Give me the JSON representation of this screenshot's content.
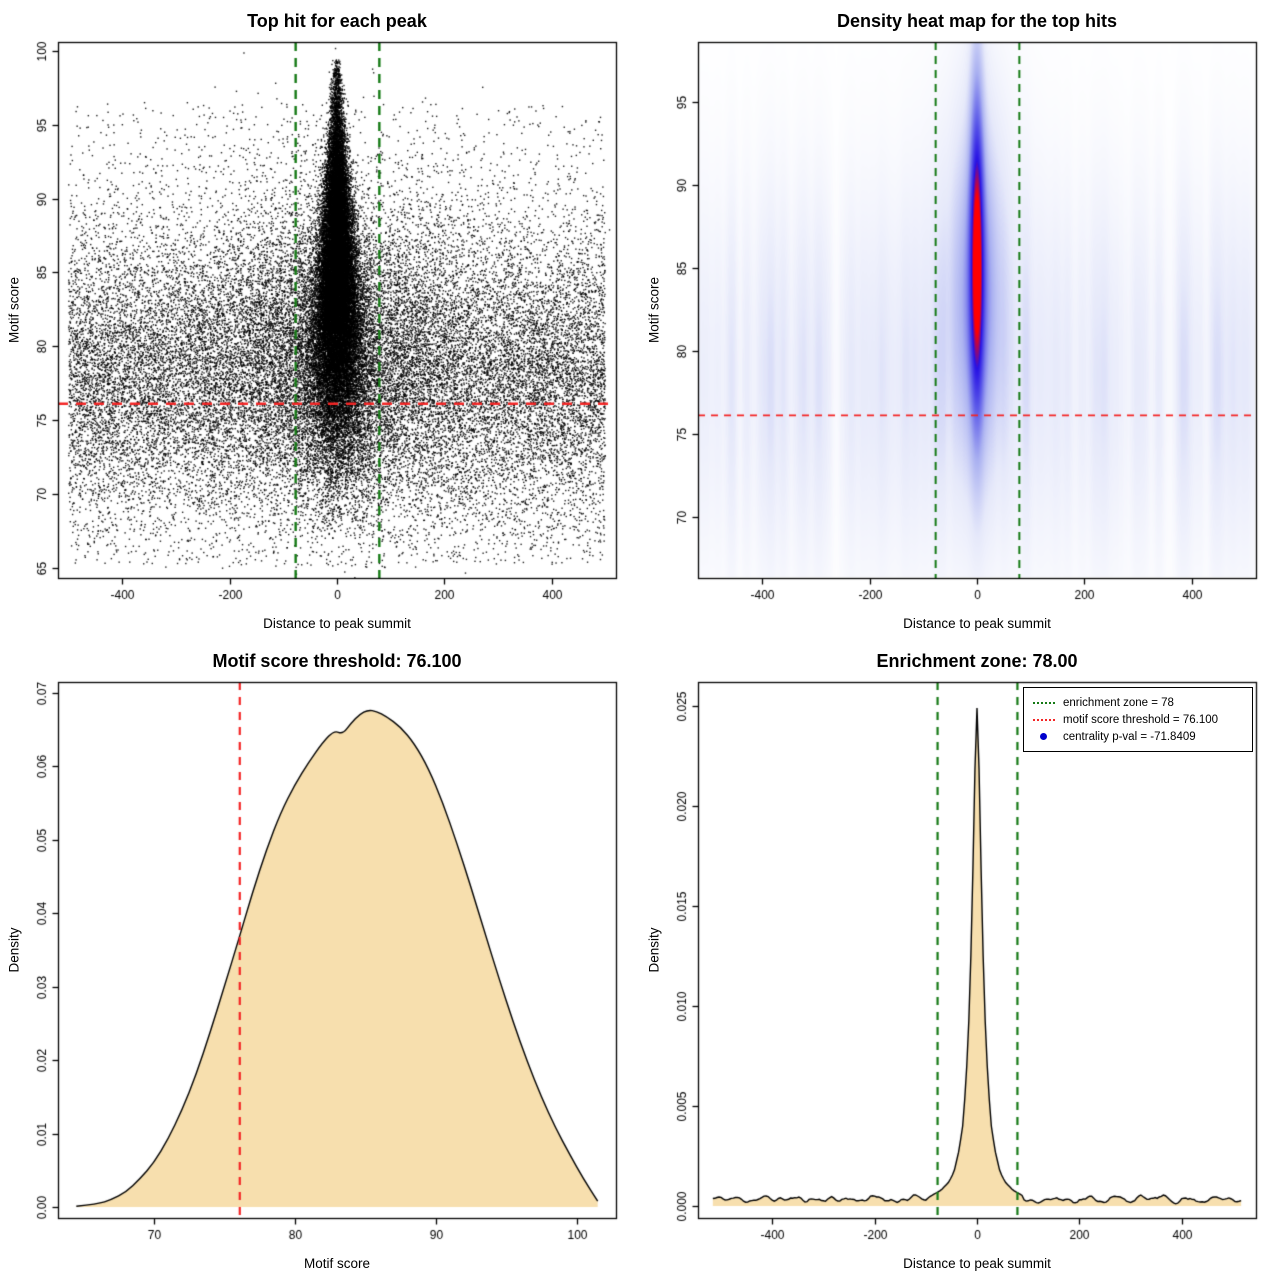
{
  "page": {
    "background": "#ffffff"
  },
  "chart_data": [
    {
      "id": "top-hit-scatter",
      "type": "scatter",
      "title": "Top hit for each peak",
      "xlabel": "Distance to peak summit",
      "ylabel": "Motif score",
      "xlim": [
        -520,
        520
      ],
      "ylim": [
        64.3,
        100.6
      ],
      "xticks": [
        -400,
        -200,
        0,
        200,
        400
      ],
      "yticks": [
        65,
        70,
        75,
        80,
        85,
        90,
        95,
        100
      ],
      "grid": false,
      "point_color": "#000000",
      "threshold_line": {
        "value": 76.1,
        "orientation": "horizontal",
        "color": "#f42525",
        "style": "dashed",
        "lwd": 2.6,
        "dash": [
          10,
          8
        ]
      },
      "zone_lines": {
        "values": [
          -78,
          78
        ],
        "orientation": "vertical",
        "color": "#157a15",
        "style": "dashed",
        "lwd": 2.4,
        "dash": [
          9,
          7
        ]
      },
      "distribution": {
        "seed": 42,
        "background": {
          "n": 22000,
          "x_min": -500,
          "x_max": 500,
          "y_mean": 78.0,
          "y_sd": 5.0,
          "y_min": 65,
          "y_max": 99
        },
        "uniform_outliers": {
          "n": 2600,
          "x_min": -500,
          "x_max": 500,
          "y_min": 65.2,
          "y_max": 96.5
        },
        "halo": {
          "n": 6000,
          "x_sd": 115,
          "y_mean": 80.5,
          "y_sd": 5.5
        },
        "central": {
          "n": 26000,
          "y_mean": 84.5,
          "y_sd": 5.8,
          "y_min": 67.5,
          "y_max": 99.4,
          "x_sd_base": 11,
          "x_sd_slope": 1.05,
          "x_sd_max": 34
        }
      }
    },
    {
      "id": "top-hit-heatmap",
      "type": "heatmap",
      "title": "Density heat map for the top hits",
      "xlabel": "Distance to peak summit",
      "ylabel": "Motif score",
      "xlim": [
        -520,
        520
      ],
      "ylim": [
        66.3,
        98.6
      ],
      "xticks": [
        -400,
        -200,
        0,
        200,
        400
      ],
      "yticks": [
        70,
        75,
        80,
        85,
        90,
        95
      ],
      "grid": false,
      "threshold_line": {
        "value": 76.1,
        "orientation": "horizontal",
        "color": "#f42525",
        "style": "dashed",
        "lwd": 1.6,
        "dash": [
          7,
          6
        ]
      },
      "zone_lines": {
        "values": [
          -78,
          78
        ],
        "orientation": "vertical",
        "color": "#157a15",
        "style": "dashed",
        "lwd": 2,
        "dash": [
          8,
          6
        ]
      },
      "density_model": {
        "noise_seed": 7,
        "norm": 1.78,
        "core": {
          "amp": 1.3,
          "x_sd": 9,
          "y_mean": 86.5,
          "y_sd": 7
        },
        "mid": {
          "amp": 0.55,
          "x_sd": 26,
          "y_mean": 84,
          "y_sd": 6.5
        },
        "halo": {
          "amp": 0.2,
          "x_sd": 55,
          "y_mean": 83,
          "y_sd": 8
        },
        "band": {
          "amp": 0.13,
          "y_mean": 78.5,
          "y_sd": 7
        }
      },
      "colormap": [
        [
          0,
          "#ffffff"
        ],
        [
          0.2,
          "#e6e9fa"
        ],
        [
          0.45,
          "#aab1f1"
        ],
        [
          0.68,
          "#5c5ae9"
        ],
        [
          0.86,
          "#2812e4"
        ],
        [
          1,
          "#ff0000"
        ]
      ]
    },
    {
      "id": "motif-score-density",
      "type": "area",
      "title": "Motif score threshold: 76.100",
      "xlabel": "Motif score",
      "ylabel": "Density",
      "xlim": [
        63.2,
        102.8
      ],
      "ylim": [
        -0.0015,
        0.0715
      ],
      "xticks": [
        70,
        80,
        90,
        100
      ],
      "yticks": [
        0,
        0.01,
        0.02,
        0.03,
        0.04,
        0.05,
        0.06,
        0.07
      ],
      "ytick_labels": [
        "0.00",
        "0.01",
        "0.02",
        "0.03",
        "0.04",
        "0.05",
        "0.06",
        "0.07"
      ],
      "grid": false,
      "smooth": true,
      "fill_color": "#f7dfae",
      "line_color": "#000000",
      "threshold_line": {
        "value": 76.1,
        "orientation": "vertical",
        "color": "#f42525",
        "style": "dashed",
        "lwd": 2.2,
        "dash": [
          8,
          7
        ]
      },
      "points": {
        "x": [
          64.5,
          66,
          67,
          68,
          69,
          70,
          71,
          72,
          73,
          74,
          75,
          76,
          77,
          78,
          79,
          80,
          81,
          82,
          82.8,
          83.4,
          84,
          84.6,
          85.2,
          85.8,
          86.5,
          87.5,
          88.5,
          89.5,
          90.5,
          91.5,
          92.5,
          93.5,
          94.5,
          95.5,
          96.5,
          97.5,
          98.5,
          99.5,
          100.5,
          101.5
        ],
        "y": [
          0.0001,
          0.0004,
          0.001,
          0.002,
          0.0038,
          0.006,
          0.0092,
          0.0132,
          0.018,
          0.0238,
          0.03,
          0.0363,
          0.0428,
          0.0487,
          0.0537,
          0.0575,
          0.0606,
          0.0633,
          0.0649,
          0.0644,
          0.0659,
          0.0671,
          0.0677,
          0.0675,
          0.0668,
          0.0654,
          0.0631,
          0.0597,
          0.0551,
          0.0496,
          0.0436,
          0.0373,
          0.0311,
          0.0252,
          0.0198,
          0.015,
          0.0108,
          0.0072,
          0.0038,
          0.0008
        ]
      }
    },
    {
      "id": "distance-density",
      "type": "area",
      "title": "Enrichment zone: 78.00",
      "xlabel": "Distance to peak summit",
      "ylabel": "Density",
      "xlim": [
        -545,
        545
      ],
      "ylim": [
        -0.0006,
        0.0262
      ],
      "xticks": [
        -400,
        -200,
        0,
        200,
        400
      ],
      "yticks": [
        0,
        0.005,
        0.01,
        0.015,
        0.02,
        0.025
      ],
      "ytick_labels": [
        "0.000",
        "0.005",
        "0.010",
        "0.015",
        "0.020",
        "0.025"
      ],
      "grid": false,
      "smooth": false,
      "fill_color": "#f7dfae",
      "line_color": "#000000",
      "zone_lines": {
        "values": [
          -78,
          78
        ],
        "orientation": "vertical",
        "color": "#157a15",
        "style": "dashed",
        "lwd": 2.2,
        "dash": [
          8,
          7
        ]
      },
      "baseline": {
        "value": 0.00035,
        "noise_amp": 0.00018,
        "seed": 11,
        "x_start": -516,
        "x_end": 516,
        "step": 4
      },
      "peak_points": {
        "x": [
          -90,
          -70,
          -55,
          -45,
          -35,
          -28,
          -22,
          -17,
          -13,
          -9,
          -6,
          -3,
          0,
          3,
          6,
          9,
          13,
          17,
          22,
          28,
          35,
          45,
          55,
          70,
          90
        ],
        "y": [
          0.0005,
          0.0008,
          0.0012,
          0.0017,
          0.0028,
          0.004,
          0.006,
          0.0085,
          0.0115,
          0.0155,
          0.0195,
          0.023,
          0.0249,
          0.023,
          0.0195,
          0.0155,
          0.0115,
          0.0085,
          0.006,
          0.004,
          0.0028,
          0.0017,
          0.0012,
          0.0008,
          0.0005
        ]
      },
      "legend": {
        "entries": [
          {
            "label": "enrichment zone = 78",
            "color": "#157a15",
            "marker": "dotted-line"
          },
          {
            "label": "motif score threshold = 76.100",
            "color": "#f42525",
            "marker": "dotted-line"
          },
          {
            "label": "centrality p-val = -71.8409",
            "color": "#0000cd",
            "marker": "dot"
          }
        ]
      }
    }
  ]
}
